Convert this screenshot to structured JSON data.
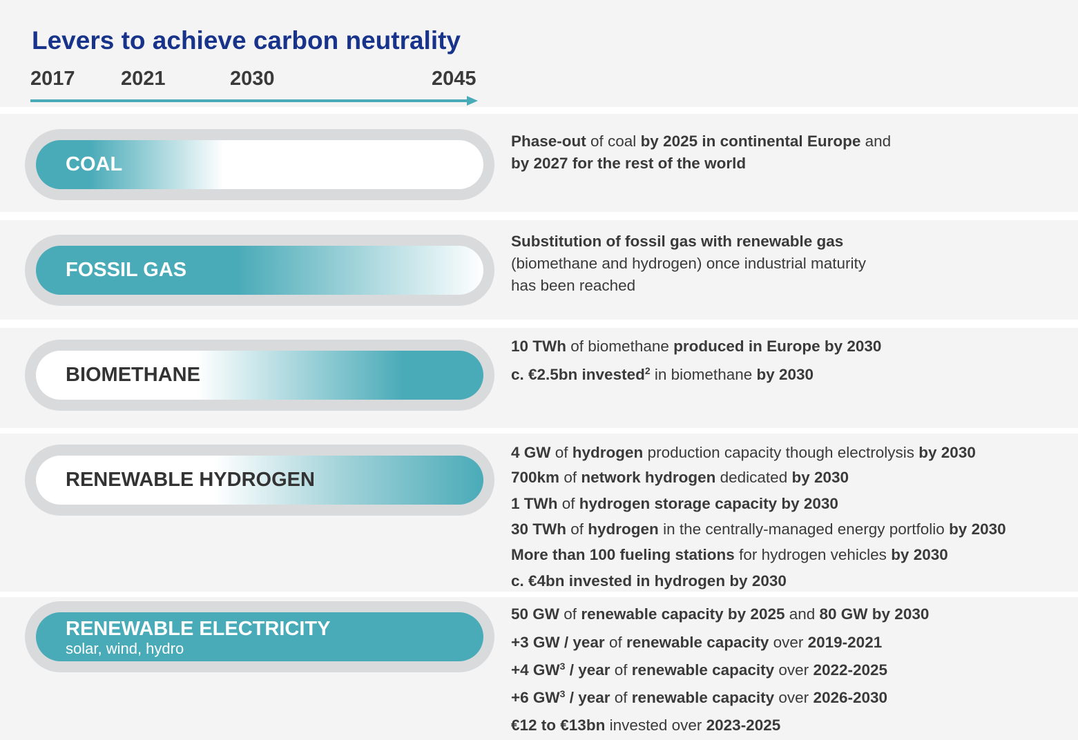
{
  "title": "Levers to achieve carbon neutrality",
  "timeline": [
    "2017",
    "2021",
    "2030",
    "2045"
  ],
  "levers": [
    {
      "label": "COAL",
      "lines": [
        [
          {
            "text": "Phase-out",
            "bold": true
          },
          {
            "text": " of coal "
          },
          {
            "text": "by 2025 in continental Europe",
            "bold": true
          },
          {
            "text": " and"
          }
        ],
        [
          {
            "text": "by 2027 for the rest of the world",
            "bold": true
          }
        ]
      ]
    },
    {
      "label": "FOSSIL GAS",
      "lines": [
        [
          {
            "text": "Substitution of fossil gas with renewable gas",
            "bold": true
          }
        ],
        [
          {
            "text": "(biomethane and hydrogen) once industrial maturity"
          }
        ],
        [
          {
            "text": "has been reached"
          }
        ]
      ]
    },
    {
      "label": "BIOMETHANE",
      "lines": [
        [
          {
            "text": "10 TWh",
            "bold": true
          },
          {
            "text": " of biomethane "
          },
          {
            "text": "produced in Europe by 2030",
            "bold": true
          }
        ],
        [
          {
            "text": "c. €2.5bn invested",
            "bold": true
          },
          {
            "text": "2",
            "bold": true,
            "sup": true
          },
          {
            "text": " in biomethane "
          },
          {
            "text": "by 2030",
            "bold": true
          }
        ]
      ]
    },
    {
      "label": "RENEWABLE HYDROGEN",
      "lines": [
        [
          {
            "text": "4 GW",
            "bold": true
          },
          {
            "text": " of "
          },
          {
            "text": "hydrogen",
            "bold": true
          },
          {
            "text": " production capacity though electrolysis "
          },
          {
            "text": "by 2030",
            "bold": true
          }
        ],
        [
          {
            "text": "700km",
            "bold": true
          },
          {
            "text": " of "
          },
          {
            "text": "network hydrogen",
            "bold": true
          },
          {
            "text": " dedicated "
          },
          {
            "text": "by 2030",
            "bold": true
          }
        ],
        [
          {
            "text": "1 TWh",
            "bold": true
          },
          {
            "text": " of "
          },
          {
            "text": "hydrogen storage capacity by 2030",
            "bold": true
          }
        ],
        [
          {
            "text": "30 TWh",
            "bold": true
          },
          {
            "text": " of "
          },
          {
            "text": "hydrogen",
            "bold": true
          },
          {
            "text": " in the centrally-managed energy portfolio "
          },
          {
            "text": "by 2030",
            "bold": true
          }
        ],
        [
          {
            "text": "More than 100 fueling stations",
            "bold": true
          },
          {
            "text": " for hydrogen vehicles "
          },
          {
            "text": "by 2030",
            "bold": true
          }
        ],
        [
          {
            "text": "c. €4bn invested in hydrogen by 2030",
            "bold": true
          }
        ]
      ]
    },
    {
      "label": "RENEWABLE ELECTRICITY",
      "subtitle": "solar, wind, hydro",
      "lines": [
        [
          {
            "text": "50 GW",
            "bold": true
          },
          {
            "text": " of "
          },
          {
            "text": "renewable capacity by 2025",
            "bold": true
          },
          {
            "text": " and "
          },
          {
            "text": "80 GW by 2030",
            "bold": true
          }
        ],
        [
          {
            "text": "+3 GW / year",
            "bold": true
          },
          {
            "text": " of "
          },
          {
            "text": "renewable capacity",
            "bold": true
          },
          {
            "text": " over "
          },
          {
            "text": "2019-2021",
            "bold": true
          }
        ],
        [
          {
            "text": "+4 GW",
            "bold": true
          },
          {
            "text": "3",
            "bold": true,
            "sup": true
          },
          {
            "text": " / year",
            "bold": true
          },
          {
            "text": " of "
          },
          {
            "text": "renewable capacity",
            "bold": true
          },
          {
            "text": " over "
          },
          {
            "text": "2022-2025",
            "bold": true
          }
        ],
        [
          {
            "text": "+6 GW",
            "bold": true
          },
          {
            "text": "3",
            "bold": true,
            "sup": true
          },
          {
            "text": " / year",
            "bold": true
          },
          {
            "text": " of "
          },
          {
            "text": "renewable capacity",
            "bold": true
          },
          {
            "text": " over "
          },
          {
            "text": "2026-2030",
            "bold": true
          }
        ],
        [
          {
            "text": "€12 to €13bn",
            "bold": true
          },
          {
            "text": " invested over "
          },
          {
            "text": "2023-2025",
            "bold": true
          }
        ]
      ]
    }
  ]
}
